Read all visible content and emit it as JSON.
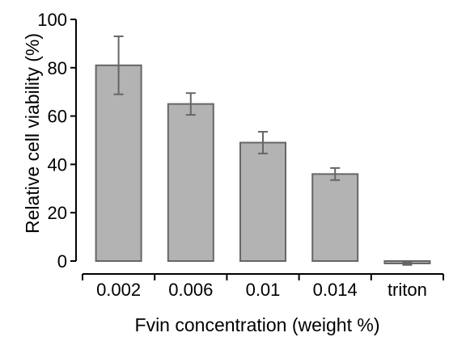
{
  "chart_data": {
    "type": "bar",
    "title": "",
    "xlabel": "Fvin concentration (weight %)",
    "ylabel": "Relative cell viability (%)",
    "ylim": [
      0,
      100
    ],
    "yticks": [
      0,
      20,
      40,
      60,
      80,
      100
    ],
    "categories": [
      "0.002",
      "0.006",
      "0.01",
      "0.014",
      "triton"
    ],
    "values": [
      81,
      65,
      49,
      36,
      -1
    ],
    "errors": [
      12,
      4.5,
      4.5,
      2.5,
      0.6
    ],
    "grid": false,
    "legend": "none",
    "colors": {
      "bar_fill": "#b3b3b3",
      "bar_stroke": "#666666",
      "error_bar": "#666666",
      "axis": "#000000"
    }
  }
}
